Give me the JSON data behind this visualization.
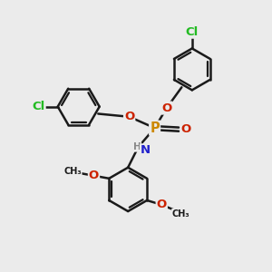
{
  "background_color": "#ebebeb",
  "bond_color": "#1a1a1a",
  "bond_width": 1.8,
  "atom_colors": {
    "Cl": "#22bb22",
    "O": "#cc2200",
    "P": "#cc8800",
    "N": "#2222cc",
    "H": "#888888",
    "C": "#1a1a1a"
  },
  "font_size": 8.5,
  "figsize": [
    3.0,
    3.0
  ],
  "dpi": 100
}
